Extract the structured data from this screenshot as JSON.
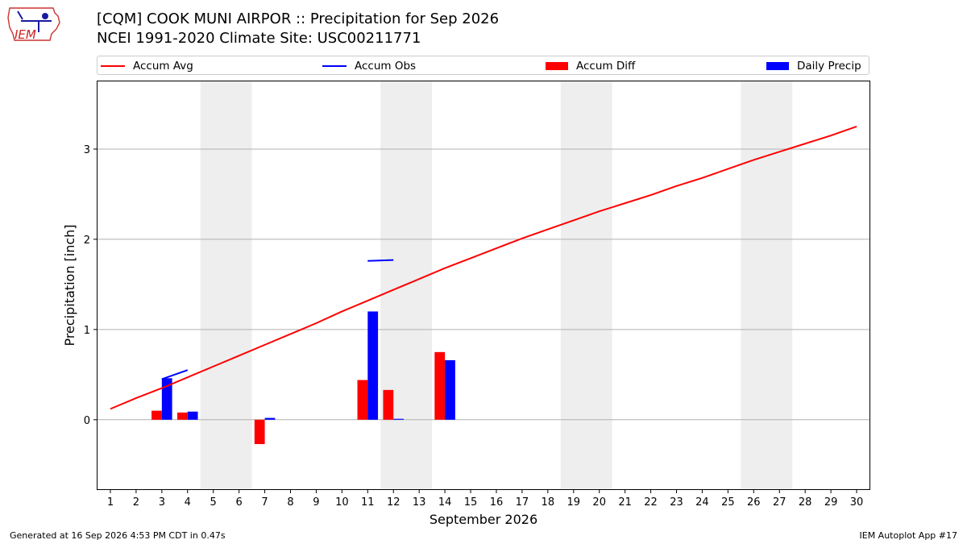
{
  "header": {
    "logo_text": "IEM",
    "title_line1": "[CQM] COOK MUNI AIRPOR :: Precipitation for Sep 2026",
    "title_line2": "NCEI 1991-2020 Climate Site: USC00211771"
  },
  "legend": {
    "accum_avg": "Accum Avg",
    "accum_obs": "Accum Obs",
    "accum_diff": "Accum Diff",
    "daily_precip": "Daily Precip"
  },
  "colors": {
    "accum_avg": "#ff0000",
    "accum_obs": "#0000ff",
    "accum_diff": "#ff0000",
    "daily_precip": "#0000ff",
    "weekend_shade": "#eeeeee",
    "grid": "#b0b0b0"
  },
  "chart_data": {
    "type": "bar",
    "xlabel": "September 2026",
    "ylabel": "Precipitation [inch]",
    "xlim": [
      0.5,
      30.5
    ],
    "ylim": [
      -0.77,
      3.75
    ],
    "yticks": [
      0,
      1,
      2,
      3
    ],
    "xticks": [
      1,
      2,
      3,
      4,
      5,
      6,
      7,
      8,
      9,
      10,
      11,
      12,
      13,
      14,
      15,
      16,
      17,
      18,
      19,
      20,
      21,
      22,
      23,
      24,
      25,
      26,
      27,
      28,
      29,
      30
    ],
    "grid": "y",
    "legend_position": "top",
    "weekend_shading": [
      [
        4.5,
        6.5
      ],
      [
        11.5,
        13.5
      ],
      [
        18.5,
        20.5
      ],
      [
        25.5,
        27.5
      ]
    ],
    "accum_avg": {
      "x": [
        1,
        2,
        3,
        4,
        5,
        6,
        7,
        8,
        9,
        10,
        11,
        12,
        13,
        14,
        15,
        16,
        17,
        18,
        19,
        20,
        21,
        22,
        23,
        24,
        25,
        26,
        27,
        28,
        29,
        30
      ],
      "y": [
        0.12,
        0.24,
        0.35,
        0.47,
        0.59,
        0.71,
        0.83,
        0.95,
        1.07,
        1.2,
        1.32,
        1.44,
        1.56,
        1.68,
        1.79,
        1.9,
        2.01,
        2.11,
        2.21,
        2.31,
        2.4,
        2.49,
        2.59,
        2.68,
        2.78,
        2.88,
        2.97,
        3.06,
        3.15,
        3.25
      ]
    },
    "accum_obs": [
      {
        "x": [
          3,
          4
        ],
        "y": [
          0.45,
          0.55
        ]
      },
      {
        "x": [
          11,
          12
        ],
        "y": [
          1.76,
          1.77
        ]
      }
    ],
    "accum_diff": {
      "x": [
        3,
        4,
        7,
        11,
        12,
        14
      ],
      "y": [
        0.1,
        0.08,
        -0.27,
        0.44,
        0.33,
        0.75
      ]
    },
    "daily_precip": {
      "x": [
        3,
        4,
        7,
        11,
        12,
        14
      ],
      "y": [
        0.46,
        0.09,
        0.02,
        1.2,
        0.01,
        0.66
      ]
    }
  },
  "footer": {
    "generated": "Generated at 16 Sep 2026 4:53 PM CDT in 0.47s",
    "app": "IEM Autoplot App #17"
  }
}
